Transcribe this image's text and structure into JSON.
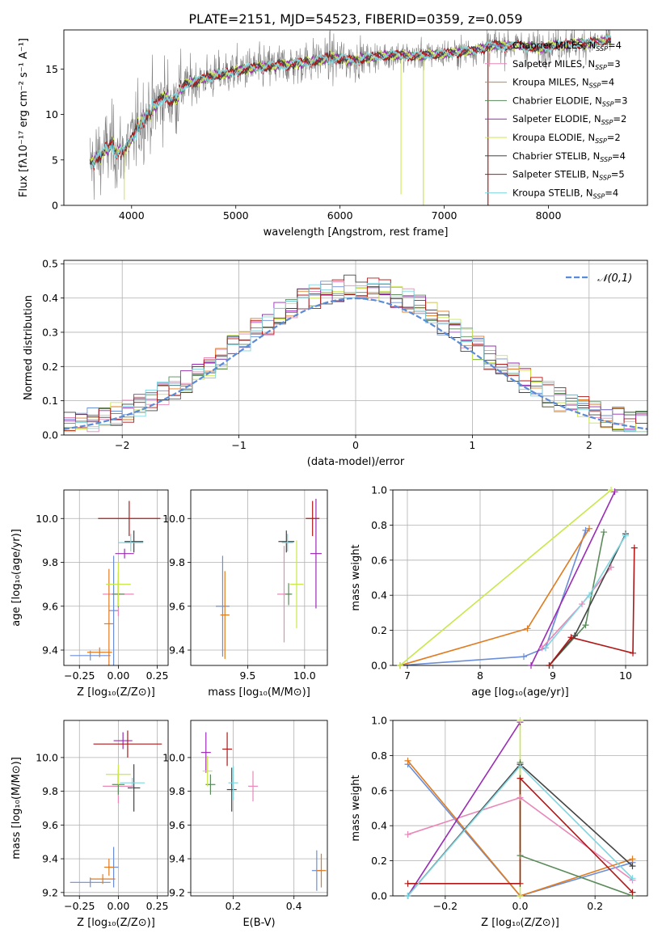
{
  "figure": {
    "title": "PLATE=2151, MJD=54523, FIBERID=0359, z=0.059"
  },
  "colors": {
    "Chabrier MILES": "#6a8fd8",
    "Salpeter MILES": "#e887b8",
    "Kroupa MILES": "#e07b1f",
    "Chabrier ELODIE": "#5a8a5a",
    "Salpeter ELODIE": "#9a2bb5",
    "Kroupa ELODIE": "#c8e84a",
    "Chabrier STELIB": "#444444",
    "Salpeter STELIB": "#b01818",
    "Kroupa STELIB": "#7fd6e0",
    "data": "#808080",
    "normal": "#5b8bd6"
  },
  "legend_spectrum": [
    {
      "model": "Chabrier MILES",
      "prefix": "Chabrier MILES, N",
      "sub": "SSP",
      "suffix": "=4"
    },
    {
      "model": "Salpeter MILES",
      "prefix": "Salpeter MILES, N",
      "sub": "SSP",
      "suffix": "=3"
    },
    {
      "model": "Kroupa MILES",
      "prefix": "Kroupa MILES, N",
      "sub": "SSP",
      "suffix": "=4"
    },
    {
      "model": "Chabrier ELODIE",
      "prefix": "Chabrier ELODIE, N",
      "sub": "SSP",
      "suffix": "=3"
    },
    {
      "model": "Salpeter ELODIE",
      "prefix": "Salpeter ELODIE, N",
      "sub": "SSP",
      "suffix": "=2"
    },
    {
      "model": "Kroupa ELODIE",
      "prefix": "Kroupa ELODIE, N",
      "sub": "SSP",
      "suffix": "=2"
    },
    {
      "model": "Chabrier STELIB",
      "prefix": "Chabrier STELIB, N",
      "sub": "SSP",
      "suffix": "=4"
    },
    {
      "model": "Salpeter STELIB",
      "prefix": "Salpeter STELIB, N",
      "sub": "SSP",
      "suffix": "=5"
    },
    {
      "model": "Kroupa STELIB",
      "prefix": "Kroupa STELIB, N",
      "sub": "SSP",
      "suffix": "=4"
    }
  ],
  "chart_data": [
    {
      "id": "spectrum",
      "type": "line",
      "xlabel": "wavelength [Angstrom, rest frame]",
      "ylabel": "Flux [fλ10⁻¹⁷ erg cm⁻² s⁻¹ A⁻¹]",
      "xlim": [
        3350,
        8950
      ],
      "ylim": [
        0,
        19.3
      ],
      "xticks": [
        4000,
        5000,
        6000,
        7000,
        8000
      ],
      "yticks": [
        0,
        5,
        10,
        15
      ],
      "grid": false,
      "legend": "upper right",
      "continuum": {
        "x": [
          3600,
          3700,
          3800,
          3900,
          4000,
          4100,
          4200,
          4300,
          4400,
          4500,
          4700,
          4900,
          5100,
          5300,
          5500,
          5700,
          5900,
          6100,
          6300,
          6500,
          6700,
          6900,
          7100,
          7300,
          7500,
          7700,
          7900,
          8100,
          8300,
          8500,
          8600
        ],
        "y": [
          4.5,
          5.5,
          6.5,
          5.8,
          7.0,
          9.5,
          10.5,
          12.0,
          11.5,
          13.2,
          14.0,
          14.5,
          15.0,
          15.2,
          15.5,
          15.8,
          16.2,
          16.0,
          16.3,
          16.6,
          16.4,
          16.6,
          16.8,
          17.1,
          17.6,
          17.6,
          17.3,
          17.7,
          17.8,
          18.0,
          18.2
        ]
      },
      "notes_features": [
        {
          "x": 3930,
          "y": 0.6
        },
        {
          "x": 6800,
          "y": 0.0
        },
        {
          "x": 7420,
          "y": 0.0
        },
        {
          "x": 6585,
          "y": 1.2
        }
      ]
    },
    {
      "id": "residuals",
      "type": "histogram",
      "xlabel": "(data-model)/error",
      "ylabel": "Normed distribution",
      "xlim": [
        -2.5,
        2.5
      ],
      "ylim": [
        0,
        0.51
      ],
      "xticks": [
        -2,
        -1,
        0,
        1,
        2
      ],
      "yticks": [
        0,
        0.1,
        0.2,
        0.3,
        0.4,
        0.5
      ],
      "grid": true,
      "legend": "upper right",
      "normal_label": "𝒩(0,1)"
    },
    {
      "id": "age-vs-Z",
      "type": "errorbar",
      "xlabel": "Z [log₁₀(Z/Z⊙)]",
      "ylabel": "age  [log₁₀(age/yr)]",
      "xlim": [
        -0.35,
        0.32
      ],
      "ylim": [
        9.33,
        10.13
      ],
      "xticks": [
        -0.25,
        0.0,
        0.25
      ],
      "yticks": [
        9.4,
        9.6,
        9.8,
        10.0
      ],
      "grid": true,
      "points": [
        {
          "model": "Chabrier MILES",
          "x": -0.03,
          "y": 9.58,
          "xe": 0.0,
          "ye": 0.25
        },
        {
          "model": "Chabrier MILES",
          "x": -0.18,
          "y": 9.375,
          "xe": 0.13,
          "ye": 0.0
        },
        {
          "model": "Salpeter MILES",
          "x": 0.0,
          "y": 9.655,
          "xe": 0.1,
          "ye": 0.1
        },
        {
          "model": "Kroupa MILES",
          "x": -0.06,
          "y": 9.52,
          "xe": 0.0,
          "ye": 0.25
        },
        {
          "model": "Kroupa MILES",
          "x": -0.12,
          "y": 9.39,
          "xe": 0.08,
          "ye": 0.0
        },
        {
          "model": "Chabrier ELODIE",
          "x": 0.0,
          "y": 9.655,
          "xe": 0.04,
          "ye": 0.06
        },
        {
          "model": "Salpeter ELODIE",
          "x": 0.04,
          "y": 9.84,
          "xe": 0.06,
          "ye": 0.0
        },
        {
          "model": "Kroupa ELODIE",
          "x": 0.0,
          "y": 9.7,
          "xe": 0.08,
          "ye": 0.1
        },
        {
          "model": "Chabrier STELIB",
          "x": 0.1,
          "y": 9.895,
          "xe": 0.06,
          "ye": 0.05
        },
        {
          "model": "Salpeter STELIB",
          "x": 0.07,
          "y": 10.0,
          "xe": 0.2,
          "ye": 0.08
        },
        {
          "model": "Kroupa STELIB",
          "x": 0.08,
          "y": 9.89,
          "xe": 0.08,
          "ye": 0.04
        }
      ]
    },
    {
      "id": "age-vs-mass",
      "type": "errorbar",
      "xlabel": "mass [log₁₀(M/M⊙)]",
      "ylabel": "",
      "xlim": [
        9.0,
        10.2
      ],
      "ylim": [
        9.33,
        10.13
      ],
      "xticks": [
        9.5,
        10.0
      ],
      "yticks": [
        9.4,
        9.6,
        9.8,
        10.0
      ],
      "grid": true,
      "points": [
        {
          "model": "Chabrier MILES",
          "x": 9.28,
          "y": 9.6,
          "xe": 0.06,
          "ye": 0.23
        },
        {
          "model": "Salpeter MILES",
          "x": 9.82,
          "y": 9.655,
          "xe": 0.06,
          "ye": 0.22
        },
        {
          "model": "Kroupa MILES",
          "x": 9.3,
          "y": 9.56,
          "xe": 0.04,
          "ye": 0.2
        },
        {
          "model": "Chabrier ELODIE",
          "x": 9.86,
          "y": 9.655,
          "xe": 0.03,
          "ye": 0.05
        },
        {
          "model": "Salpeter ELODIE",
          "x": 10.1,
          "y": 9.84,
          "xe": 0.05,
          "ye": 0.25
        },
        {
          "model": "Kroupa ELODIE",
          "x": 9.93,
          "y": 9.7,
          "xe": 0.06,
          "ye": 0.2
        },
        {
          "model": "Chabrier STELIB",
          "x": 9.84,
          "y": 9.895,
          "xe": 0.07,
          "ye": 0.05
        },
        {
          "model": "Salpeter STELIB",
          "x": 10.07,
          "y": 10.0,
          "xe": 0.06,
          "ye": 0.08
        },
        {
          "model": "Kroupa STELIB",
          "x": 9.85,
          "y": 9.89,
          "xe": 0.05,
          "ye": 0.04
        }
      ]
    },
    {
      "id": "weight-vs-age",
      "type": "line",
      "xlabel": "age  [log₁₀(age/yr)]",
      "ylabel": "mass weight",
      "xlim": [
        6.8,
        10.3
      ],
      "ylim": [
        0,
        1.0
      ],
      "xticks": [
        7,
        8,
        9,
        10
      ],
      "yticks": [
        0.0,
        0.2,
        0.4,
        0.6,
        0.8,
        1.0
      ],
      "grid": true,
      "series": [
        {
          "model": "Chabrier MILES",
          "x": [
            6.9,
            8.6,
            8.9,
            9.45
          ],
          "y": [
            0.0,
            0.05,
            0.1,
            0.77
          ]
        },
        {
          "model": "Salpeter MILES",
          "x": [
            8.85,
            9.4,
            9.8
          ],
          "y": [
            0.1,
            0.35,
            0.56
          ]
        },
        {
          "model": "Kroupa MILES",
          "x": [
            6.9,
            8.65,
            9.5
          ],
          "y": [
            0.0,
            0.21,
            0.78
          ]
        },
        {
          "model": "Chabrier ELODIE",
          "x": [
            8.95,
            9.45,
            9.7
          ],
          "y": [
            0.0,
            0.23,
            0.76
          ]
        },
        {
          "model": "Salpeter ELODIE",
          "x": [
            8.7,
            9.85
          ],
          "y": [
            0.0,
            0.99
          ]
        },
        {
          "model": "Kroupa ELODIE",
          "x": [
            6.9,
            9.8
          ],
          "y": [
            0.0,
            1.0
          ]
        },
        {
          "model": "Chabrier STELIB",
          "x": [
            8.95,
            9.3,
            10.0
          ],
          "y": [
            0.0,
            0.17,
            0.75
          ]
        },
        {
          "model": "Salpeter STELIB",
          "x": [
            8.95,
            9.25,
            10.1,
            10.12
          ],
          "y": [
            0.0,
            0.16,
            0.07,
            0.67
          ]
        },
        {
          "model": "Kroupa STELIB",
          "x": [
            8.9,
            9.5,
            10.0
          ],
          "y": [
            0.1,
            0.4,
            0.74
          ]
        }
      ]
    },
    {
      "id": "mass-vs-Z",
      "type": "errorbar",
      "xlabel": "Z [log₁₀(Z/Z⊙)]",
      "ylabel": "mass [log₁₀(M/M⊙)]",
      "xlim": [
        -0.35,
        0.32
      ],
      "ylim": [
        9.18,
        10.22
      ],
      "xticks": [
        -0.25,
        0.0,
        0.25
      ],
      "yticks": [
        9.2,
        9.4,
        9.6,
        9.8,
        10.0
      ],
      "grid": true,
      "points": [
        {
          "model": "Chabrier MILES",
          "x": -0.03,
          "y": 9.35,
          "xe": 0.0,
          "ye": 0.12
        },
        {
          "model": "Chabrier MILES",
          "x": -0.18,
          "y": 9.26,
          "xe": 0.13,
          "ye": 0.0
        },
        {
          "model": "Salpeter MILES",
          "x": 0.0,
          "y": 9.83,
          "xe": 0.1,
          "ye": 0.1
        },
        {
          "model": "Kroupa MILES",
          "x": -0.06,
          "y": 9.35,
          "xe": 0.0,
          "ye": 0.05
        },
        {
          "model": "Kroupa MILES",
          "x": -0.1,
          "y": 9.28,
          "xe": 0.08,
          "ye": 0.0
        },
        {
          "model": "Chabrier ELODIE",
          "x": 0.0,
          "y": 9.84,
          "xe": 0.04,
          "ye": 0.06
        },
        {
          "model": "Salpeter ELODIE",
          "x": 0.03,
          "y": 10.1,
          "xe": 0.06,
          "ye": 0.05
        },
        {
          "model": "Kroupa ELODIE",
          "x": 0.0,
          "y": 9.9,
          "xe": 0.08,
          "ye": 0.06
        },
        {
          "model": "Chabrier STELIB",
          "x": 0.1,
          "y": 9.82,
          "xe": 0.04,
          "ye": 0.14
        },
        {
          "model": "Salpeter STELIB",
          "x": 0.06,
          "y": 10.08,
          "xe": 0.22,
          "ye": 0.08
        },
        {
          "model": "Kroupa STELIB",
          "x": 0.09,
          "y": 9.85,
          "xe": 0.08,
          "ye": 0.03
        }
      ]
    },
    {
      "id": "mass-vs-EBV",
      "type": "errorbar",
      "xlabel": "E(B-V)",
      "ylabel": "",
      "xlim": [
        0.06,
        0.51
      ],
      "ylim": [
        9.18,
        10.22
      ],
      "xticks": [
        0.2,
        0.4
      ],
      "yticks": [
        9.2,
        9.4,
        9.6,
        9.8,
        10.0
      ],
      "grid": true,
      "points": [
        {
          "model": "Chabrier MILES",
          "x": 0.475,
          "y": 9.33,
          "xe": 0.0,
          "ye": 0.12
        },
        {
          "model": "Salpeter MILES",
          "x": 0.265,
          "y": 9.83,
          "xe": 0.0,
          "ye": 0.09
        },
        {
          "model": "Kroupa MILES",
          "x": 0.49,
          "y": 9.33,
          "xe": 0.0,
          "ye": 0.1
        },
        {
          "model": "Chabrier ELODIE",
          "x": 0.125,
          "y": 9.84,
          "xe": 0.0,
          "ye": 0.06
        },
        {
          "model": "Salpeter ELODIE",
          "x": 0.11,
          "y": 10.03,
          "xe": 0.0,
          "ye": 0.12
        },
        {
          "model": "Kroupa ELODIE",
          "x": 0.115,
          "y": 9.92,
          "xe": 0.0,
          "ye": 0.09
        },
        {
          "model": "Chabrier STELIB",
          "x": 0.195,
          "y": 9.81,
          "xe": 0.0,
          "ye": 0.13
        },
        {
          "model": "Salpeter STELIB",
          "x": 0.18,
          "y": 10.05,
          "xe": 0.0,
          "ye": 0.1
        },
        {
          "model": "Kroupa STELIB",
          "x": 0.2,
          "y": 9.85,
          "xe": 0.0,
          "ye": 0.1
        }
      ]
    },
    {
      "id": "weight-vs-Z",
      "type": "line",
      "xlabel": "Z [log₁₀(Z/Z⊙)]",
      "ylabel": "mass weight",
      "xlim": [
        -0.34,
        0.34
      ],
      "ylim": [
        0,
        1.0
      ],
      "xticks": [
        -0.2,
        0.0,
        0.2
      ],
      "yticks": [
        0.0,
        0.2,
        0.4,
        0.6,
        0.8,
        1.0
      ],
      "grid": true,
      "series": [
        {
          "model": "Chabrier MILES",
          "x": [
            -0.3,
            0.0,
            0.3
          ],
          "y": [
            0.75,
            0.0,
            0.19
          ]
        },
        {
          "model": "Salpeter MILES",
          "x": [
            -0.3,
            0.0,
            0.3
          ],
          "y": [
            0.35,
            0.56,
            0.09
          ]
        },
        {
          "model": "Kroupa MILES",
          "x": [
            -0.3,
            0.0,
            0.3
          ],
          "y": [
            0.77,
            0.0,
            0.21
          ]
        },
        {
          "model": "Chabrier ELODIE",
          "x": [
            0.0,
            0.0,
            0.3
          ],
          "y": [
            0.76,
            0.23,
            0.0
          ]
        },
        {
          "model": "Salpeter ELODIE",
          "x": [
            -0.3,
            0.0
          ],
          "y": [
            0.0,
            0.99
          ]
        },
        {
          "model": "Kroupa ELODIE",
          "x": [
            0.0,
            0.0
          ],
          "y": [
            0.0,
            1.0
          ]
        },
        {
          "model": "Chabrier STELIB",
          "x": [
            -0.3,
            0.0,
            0.3
          ],
          "y": [
            0.0,
            0.75,
            0.17
          ]
        },
        {
          "model": "Salpeter STELIB",
          "x": [
            -0.3,
            0.0,
            0.0,
            0.3
          ],
          "y": [
            0.07,
            0.07,
            0.67,
            0.02
          ]
        },
        {
          "model": "Kroupa STELIB",
          "x": [
            -0.3,
            0.0,
            0.3
          ],
          "y": [
            0.0,
            0.74,
            0.1
          ]
        }
      ]
    }
  ]
}
